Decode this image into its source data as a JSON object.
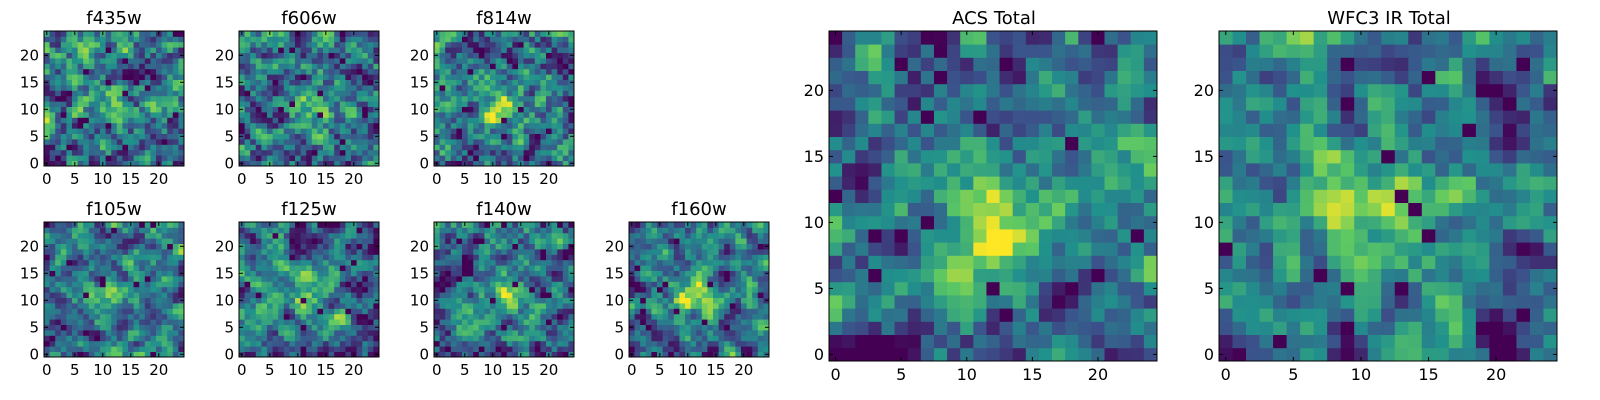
{
  "figure": {
    "colormap": "viridis",
    "colormap_stops": [
      "#440154",
      "#3b528b",
      "#21918c",
      "#5ec962",
      "#fde725"
    ],
    "background": "#ffffff"
  },
  "chart_data": [
    {
      "type": "heatmap",
      "title": "f435w",
      "grid_size": 25,
      "xlim": [
        -0.5,
        24.5
      ],
      "ylim": [
        -0.5,
        24.5
      ],
      "xticks": [
        0,
        5,
        10,
        15,
        20
      ],
      "yticks": [
        0,
        5,
        10,
        15,
        20
      ],
      "seed": 11,
      "blob": {
        "x": 12,
        "y": 10,
        "amp": 0.2,
        "sigma": 2.6
      },
      "noise": 0.85
    },
    {
      "type": "heatmap",
      "title": "f606w",
      "grid_size": 25,
      "xlim": [
        -0.5,
        24.5
      ],
      "ylim": [
        -0.5,
        24.5
      ],
      "xticks": [
        0,
        5,
        10,
        15,
        20
      ],
      "yticks": [
        0,
        5,
        10,
        15,
        20
      ],
      "seed": 23,
      "blob": {
        "x": 12,
        "y": 10,
        "amp": 0.3,
        "sigma": 2.6
      },
      "noise": 0.8
    },
    {
      "type": "heatmap",
      "title": "f814w",
      "grid_size": 25,
      "xlim": [
        -0.5,
        24.5
      ],
      "ylim": [
        -0.5,
        24.5
      ],
      "xticks": [
        0,
        5,
        10,
        15,
        20
      ],
      "yticks": [
        0,
        5,
        10,
        15,
        20
      ],
      "seed": 37,
      "blob": {
        "x": 12,
        "y": 10,
        "amp": 0.35,
        "sigma": 2.5
      },
      "noise": 0.8
    },
    {
      "type": "heatmap",
      "title": "f105w",
      "grid_size": 25,
      "xlim": [
        -0.5,
        24.5
      ],
      "ylim": [
        -0.5,
        24.5
      ],
      "xticks": [
        0,
        5,
        10,
        15,
        20
      ],
      "yticks": [
        0,
        5,
        10,
        15,
        20
      ],
      "seed": 41,
      "blob": {
        "x": 12,
        "y": 11,
        "amp": 0.2,
        "sigma": 3.2
      },
      "noise": 0.6
    },
    {
      "type": "heatmap",
      "title": "f125w",
      "grid_size": 25,
      "xlim": [
        -0.5,
        24.5
      ],
      "ylim": [
        -0.5,
        24.5
      ],
      "xticks": [
        0,
        5,
        10,
        15,
        20
      ],
      "yticks": [
        0,
        5,
        10,
        15,
        20
      ],
      "seed": 53,
      "blob": {
        "x": 12,
        "y": 11,
        "amp": 0.2,
        "sigma": 3.2
      },
      "noise": 0.6
    },
    {
      "type": "heatmap",
      "title": "f140w",
      "grid_size": 25,
      "xlim": [
        -0.5,
        24.5
      ],
      "ylim": [
        -0.5,
        24.5
      ],
      "xticks": [
        0,
        5,
        10,
        15,
        20
      ],
      "yticks": [
        0,
        5,
        10,
        15,
        20
      ],
      "seed": 67,
      "blob": {
        "x": 12,
        "y": 11,
        "amp": 0.2,
        "sigma": 3.2
      },
      "noise": 0.6
    },
    {
      "type": "heatmap",
      "title": "f160w",
      "grid_size": 25,
      "xlim": [
        -0.5,
        24.5
      ],
      "ylim": [
        -0.5,
        24.5
      ],
      "xticks": [
        0,
        5,
        10,
        15,
        20
      ],
      "yticks": [
        0,
        5,
        10,
        15,
        20
      ],
      "seed": 79,
      "blob": {
        "x": 11,
        "y": 11,
        "amp": 0.35,
        "sigma": 3.2
      },
      "noise": 0.6
    },
    {
      "type": "heatmap",
      "title": "ACS Total",
      "grid_size": 25,
      "xlim": [
        -0.5,
        24.5
      ],
      "ylim": [
        -0.5,
        24.5
      ],
      "xticks": [
        0,
        5,
        10,
        15,
        20
      ],
      "yticks": [
        0,
        5,
        10,
        15,
        20
      ],
      "seed": 97,
      "blob": {
        "x": 12,
        "y": 10,
        "amp": 0.42,
        "sigma": 2.2
      },
      "noise": 0.55
    },
    {
      "type": "heatmap",
      "title": "WFC3 IR Total",
      "grid_size": 25,
      "xlim": [
        -0.5,
        24.5
      ],
      "ylim": [
        -0.5,
        24.5
      ],
      "xticks": [
        0,
        5,
        10,
        15,
        20
      ],
      "yticks": [
        0,
        5,
        10,
        15,
        20
      ],
      "seed": 131,
      "blob": {
        "x": 12,
        "y": 11,
        "amp": 0.3,
        "sigma": 3.8
      },
      "noise": 0.55
    }
  ]
}
